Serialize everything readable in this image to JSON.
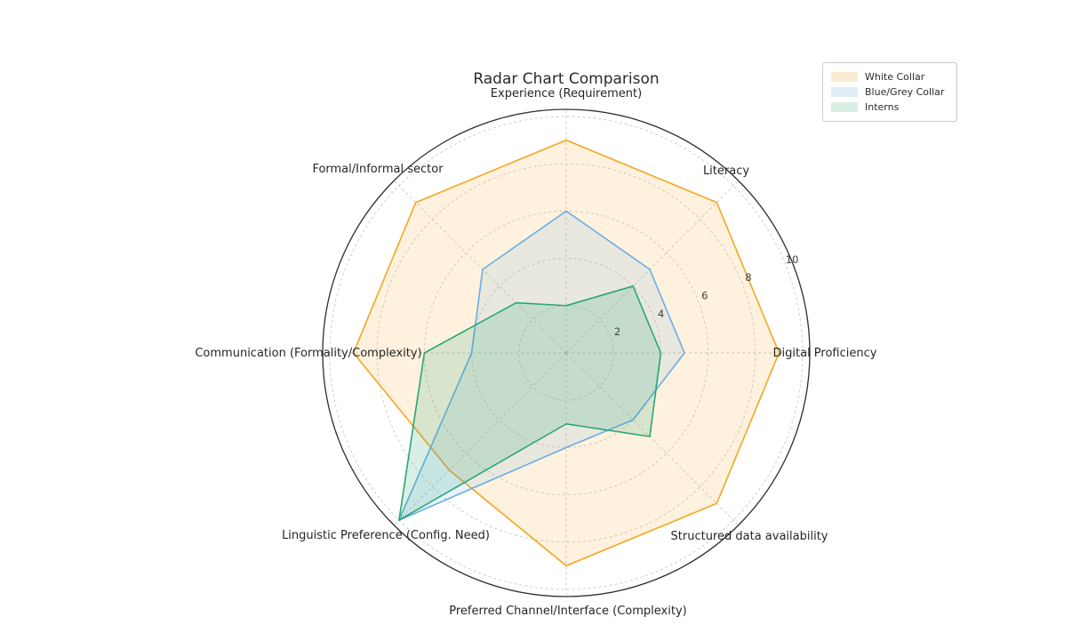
{
  "figure": {
    "title": "Radar Chart Comparison"
  },
  "legend": {
    "items": [
      {
        "label": "White Collar",
        "swatch": "#faecd2"
      },
      {
        "label": "Blue/Grey Collar",
        "swatch": "#e0ecf8"
      },
      {
        "label": "Interns",
        "swatch": "#daeee3"
      }
    ]
  },
  "chart_data": {
    "type": "radar",
    "title": "Radar Chart Comparison",
    "categories": [
      "Experience (Requirement)",
      "Literacy",
      "Digital Proficiency",
      "Structured data availability",
      "Preferred Channel/Interface (Complexity)",
      "Linguistic Preference (Config. Need)",
      "Communication (Formality/Complexity)",
      "Formal/Informal sector"
    ],
    "series": [
      {
        "name": "White Collar",
        "color": "#f5a623",
        "fill": "rgba(245,166,35,0.15)",
        "values": [
          9,
          9,
          9,
          9,
          9,
          7,
          9,
          9
        ]
      },
      {
        "name": "Blue/Grey Collar",
        "color": "#6aade4",
        "fill": "rgba(106,173,228,0.15)",
        "values": [
          6,
          5,
          5,
          4,
          4,
          10,
          4,
          5
        ]
      },
      {
        "name": "Interns",
        "color": "#2aa773",
        "fill": "rgba(42,167,115,0.18)",
        "values": [
          2,
          4,
          4,
          5,
          3,
          10,
          6,
          3
        ]
      }
    ],
    "radial_ticks": [
      2,
      4,
      6,
      8,
      10
    ],
    "rlim": [
      0,
      10.3
    ],
    "tick_label_angle_deg": 22.5,
    "start_angle_deg": 90,
    "direction": "clockwise",
    "grid": true,
    "grid_style": "dashed",
    "legend_position": "upper right",
    "colors": {
      "outer_ring": "#2e2e2e",
      "grid": "#c8c8c8",
      "title_text": "#2b2b2b",
      "category_text": "#262626",
      "tick_text": "#3f3f3f"
    }
  }
}
